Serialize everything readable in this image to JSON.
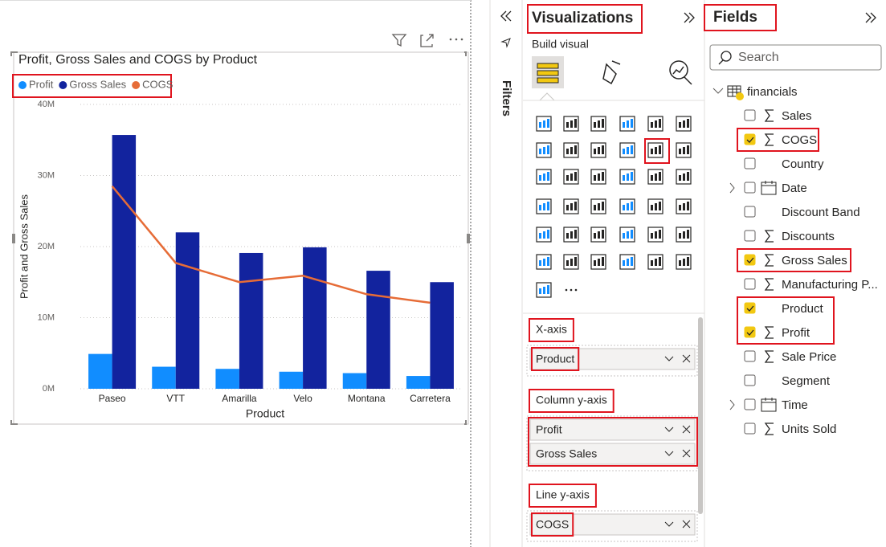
{
  "chart_data": {
    "type": "combo",
    "title": "Profit, Gross Sales and COGS by Product",
    "xlabel": "Product",
    "ylabel": "Profit and Gross Sales",
    "categories": [
      "Paseo",
      "VTT",
      "Amarilla",
      "Velo",
      "Montana",
      "Carretera"
    ],
    "series": [
      {
        "name": "Profit",
        "color": "#118dff",
        "type": "bar",
        "values": [
          4900000,
          3100000,
          2800000,
          2400000,
          2200000,
          1800000
        ]
      },
      {
        "name": "Gross Sales",
        "color": "#12239e",
        "type": "bar",
        "values": [
          35700000,
          22000000,
          19100000,
          19900000,
          16600000,
          15000000
        ]
      },
      {
        "name": "COGS",
        "color": "#e66c37",
        "type": "line",
        "values": [
          28500000,
          17700000,
          15000000,
          15900000,
          13300000,
          12100000
        ]
      }
    ],
    "ylim": [
      0,
      40000000
    ],
    "yticks": [
      {
        "value": 0,
        "label": "0M"
      },
      {
        "value": 10000000,
        "label": "10M"
      },
      {
        "value": 20000000,
        "label": "20M"
      },
      {
        "value": 30000000,
        "label": "30M"
      },
      {
        "value": 40000000,
        "label": "40M"
      }
    ],
    "grid": true
  },
  "filters": {
    "label": "Filters"
  },
  "visualizations": {
    "title": "Visualizations",
    "subtitle": "Build visual",
    "wells": [
      {
        "label": "X-axis",
        "fields": [
          "Product"
        ]
      },
      {
        "label": "Column y-axis",
        "fields": [
          "Profit",
          "Gross Sales"
        ]
      },
      {
        "label": "Line y-axis",
        "fields": [
          "COGS"
        ]
      }
    ]
  },
  "fields": {
    "title": "Fields",
    "search": "Search",
    "table": "financials",
    "items": [
      {
        "name": "Sales",
        "checked": false,
        "sigma": true
      },
      {
        "name": "COGS",
        "checked": true,
        "sigma": true,
        "highlighted": true
      },
      {
        "name": "Country",
        "checked": false
      },
      {
        "name": "Date",
        "checked": false,
        "hierarchy": true
      },
      {
        "name": "Discount Band",
        "checked": false
      },
      {
        "name": "Discounts",
        "checked": false,
        "sigma": true
      },
      {
        "name": "Gross Sales",
        "checked": true,
        "sigma": true,
        "highlighted": true
      },
      {
        "name": "Manufacturing P...",
        "checked": false,
        "sigma": true
      },
      {
        "name": "Product",
        "checked": true,
        "highlighted": true
      },
      {
        "name": "Profit",
        "checked": true,
        "sigma": true,
        "highlighted": true
      },
      {
        "name": "Sale Price",
        "checked": false,
        "sigma": true
      },
      {
        "name": "Segment",
        "checked": false
      },
      {
        "name": "Time",
        "checked": false,
        "hierarchy": true
      },
      {
        "name": "Units Sold",
        "checked": false,
        "sigma": true
      }
    ]
  }
}
